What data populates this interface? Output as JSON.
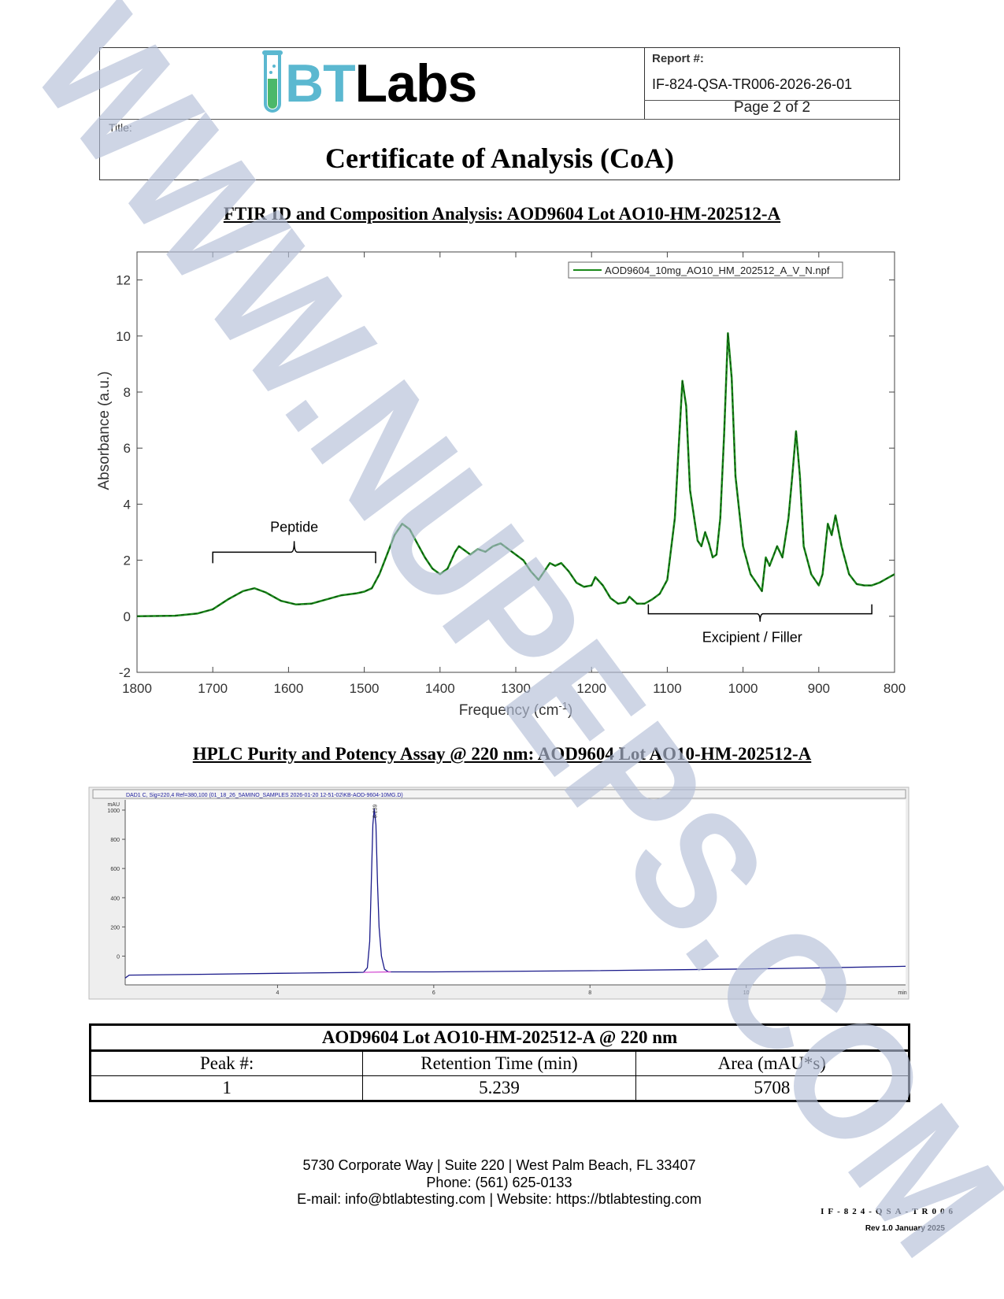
{
  "header": {
    "logo_text_bt": "BT",
    "logo_text_labs": "Labs",
    "report_label": "Report #:",
    "report_number": "IF-824-QSA-TR006-2026-26-01",
    "page": "Page 2 of 2",
    "title_label": "Title:",
    "title": "Certificate of Analysis (CoA)",
    "colors": {
      "bt": "#5bb8d0",
      "tube_fill": "#4cb86a"
    }
  },
  "ftir": {
    "section_title": "FTIR ID and Composition Analysis: AOD9604 Lot AO10-HM-202512-A",
    "chart_data": {
      "type": "line",
      "xlabel": "Frequency (cm",
      "xlabel_sup": "-1",
      "xlabel_end": ")",
      "ylabel": "Absorbance (a.u.)",
      "xlim": [
        1800,
        800
      ],
      "ylim": [
        -2,
        13
      ],
      "x_reversed": true,
      "xticks": [
        1800,
        1700,
        1600,
        1500,
        1400,
        1300,
        1200,
        1100,
        1000,
        900,
        800
      ],
      "yticks": [
        -2,
        0,
        2,
        4,
        6,
        8,
        10,
        12
      ],
      "legend_position": "top-right",
      "grid": false,
      "series": [
        {
          "name": "AOD9604_10mg_AO10_HM_202512_A_V_N.npf",
          "color": "#1a8a1a",
          "points": [
            [
              1800,
              0
            ],
            [
              1750,
              0.02
            ],
            [
              1720,
              0.1
            ],
            [
              1700,
              0.25
            ],
            [
              1680,
              0.6
            ],
            [
              1660,
              0.9
            ],
            [
              1645,
              1.0
            ],
            [
              1630,
              0.85
            ],
            [
              1610,
              0.55
            ],
            [
              1590,
              0.42
            ],
            [
              1570,
              0.45
            ],
            [
              1550,
              0.6
            ],
            [
              1530,
              0.75
            ],
            [
              1510,
              0.82
            ],
            [
              1500,
              0.88
            ],
            [
              1490,
              1.0
            ],
            [
              1480,
              1.5
            ],
            [
              1470,
              2.2
            ],
            [
              1460,
              2.9
            ],
            [
              1450,
              3.3
            ],
            [
              1440,
              3.1
            ],
            [
              1430,
              2.6
            ],
            [
              1420,
              2.1
            ],
            [
              1410,
              1.7
            ],
            [
              1400,
              1.5
            ],
            [
              1390,
              1.7
            ],
            [
              1380,
              2.3
            ],
            [
              1375,
              2.5
            ],
            [
              1365,
              2.3
            ],
            [
              1360,
              2.2
            ],
            [
              1350,
              2.4
            ],
            [
              1340,
              2.3
            ],
            [
              1330,
              2.5
            ],
            [
              1320,
              2.6
            ],
            [
              1310,
              2.4
            ],
            [
              1300,
              2.2
            ],
            [
              1290,
              2.0
            ],
            [
              1280,
              1.6
            ],
            [
              1270,
              1.3
            ],
            [
              1260,
              1.7
            ],
            [
              1255,
              1.9
            ],
            [
              1248,
              1.8
            ],
            [
              1240,
              1.9
            ],
            [
              1230,
              1.6
            ],
            [
              1220,
              1.2
            ],
            [
              1210,
              1.05
            ],
            [
              1200,
              1.1
            ],
            [
              1195,
              1.4
            ],
            [
              1185,
              1.1
            ],
            [
              1175,
              0.65
            ],
            [
              1165,
              0.45
            ],
            [
              1155,
              0.5
            ],
            [
              1150,
              0.7
            ],
            [
              1140,
              0.45
            ],
            [
              1130,
              0.45
            ],
            [
              1120,
              0.6
            ],
            [
              1110,
              0.8
            ],
            [
              1100,
              1.3
            ],
            [
              1090,
              3.5
            ],
            [
              1085,
              6.0
            ],
            [
              1080,
              8.4
            ],
            [
              1075,
              7.5
            ],
            [
              1070,
              4.5
            ],
            [
              1060,
              2.7
            ],
            [
              1055,
              2.5
            ],
            [
              1050,
              3.0
            ],
            [
              1045,
              2.6
            ],
            [
              1040,
              2.1
            ],
            [
              1035,
              2.2
            ],
            [
              1030,
              3.5
            ],
            [
              1025,
              6.5
            ],
            [
              1020,
              10.1
            ],
            [
              1015,
              8.5
            ],
            [
              1010,
              5.0
            ],
            [
              1000,
              2.5
            ],
            [
              990,
              1.5
            ],
            [
              980,
              1.1
            ],
            [
              975,
              0.9
            ],
            [
              970,
              2.1
            ],
            [
              965,
              1.8
            ],
            [
              955,
              2.5
            ],
            [
              948,
              2.1
            ],
            [
              940,
              3.5
            ],
            [
              935,
              5.0
            ],
            [
              930,
              6.6
            ],
            [
              925,
              5.0
            ],
            [
              920,
              2.5
            ],
            [
              910,
              1.5
            ],
            [
              900,
              1.1
            ],
            [
              895,
              1.5
            ],
            [
              888,
              3.3
            ],
            [
              883,
              2.9
            ],
            [
              878,
              3.6
            ],
            [
              870,
              2.5
            ],
            [
              860,
              1.5
            ],
            [
              850,
              1.15
            ],
            [
              840,
              1.1
            ],
            [
              830,
              1.1
            ],
            [
              820,
              1.2
            ],
            [
              810,
              1.35
            ],
            [
              800,
              1.5
            ]
          ]
        }
      ],
      "annotations": [
        {
          "text": "Peptide",
          "from": 1700,
          "to": 1485,
          "y": 2.4,
          "side": "above"
        },
        {
          "text": "Excipient / Filler",
          "from": 1125,
          "to": 830,
          "y": 0.2,
          "side": "below"
        }
      ]
    }
  },
  "hplc": {
    "section_title": "HPLC Purity and Potency Assay @ 220 nm: AOD9604 Lot AO10-HM-202512-A",
    "chart_data": {
      "type": "line",
      "title": "DAD1 C, Sig=220,4 Ref=380,100 (01_18_26_5AMINO_SAMPLES 2026-01-20 12-51-02\\KB-AOD-9604-10MG.D)",
      "ylabel": "mAU",
      "xlabel": "min",
      "xlim": [
        2.05,
        12.04
      ],
      "ylim": [
        -197,
        1070
      ],
      "xticks": [
        4,
        6,
        8,
        10
      ],
      "yticks": [
        0,
        200,
        400,
        600,
        800,
        1000
      ],
      "line_color": "#1a1a8a",
      "baseline_color": "#d040d0",
      "peak_label": "5.239",
      "peak_rt": 5.239,
      "points": [
        [
          2.05,
          -150
        ],
        [
          2.1,
          -130
        ],
        [
          3,
          -125
        ],
        [
          4,
          -118
        ],
        [
          5,
          -112
        ],
        [
          5.1,
          -111
        ],
        [
          5.15,
          -80
        ],
        [
          5.18,
          100
        ],
        [
          5.2,
          500
        ],
        [
          5.22,
          900
        ],
        [
          5.239,
          1010
        ],
        [
          5.26,
          900
        ],
        [
          5.28,
          500
        ],
        [
          5.3,
          200
        ],
        [
          5.33,
          0
        ],
        [
          5.37,
          -90
        ],
        [
          5.42,
          -108
        ],
        [
          6,
          -108
        ],
        [
          8,
          -100
        ],
        [
          10,
          -88
        ],
        [
          11,
          -80
        ],
        [
          12.04,
          -70
        ]
      ]
    }
  },
  "results_table": {
    "title": "AOD9604 Lot AO10-HM-202512-A @ 220 nm",
    "columns": [
      "Peak #:",
      "Retention Time (min)",
      "Area (mAU*s)"
    ],
    "rows": [
      [
        "1",
        "5.239",
        "5708"
      ]
    ]
  },
  "footer": {
    "address": "5730 Corporate Way | Suite 220 | West Palm Beach, FL 33407",
    "phone": "Phone: (561) 625-0133",
    "contact": "E-mail: info@btlabtesting.com | Website: https://btlabtesting.com",
    "doc_code": "IF-824-QSA-TR006",
    "revision": "Rev 1.0 January 2025"
  },
  "watermark": {
    "text": "WWW.NUPEPS.COM",
    "color": "#b4bfd8"
  }
}
